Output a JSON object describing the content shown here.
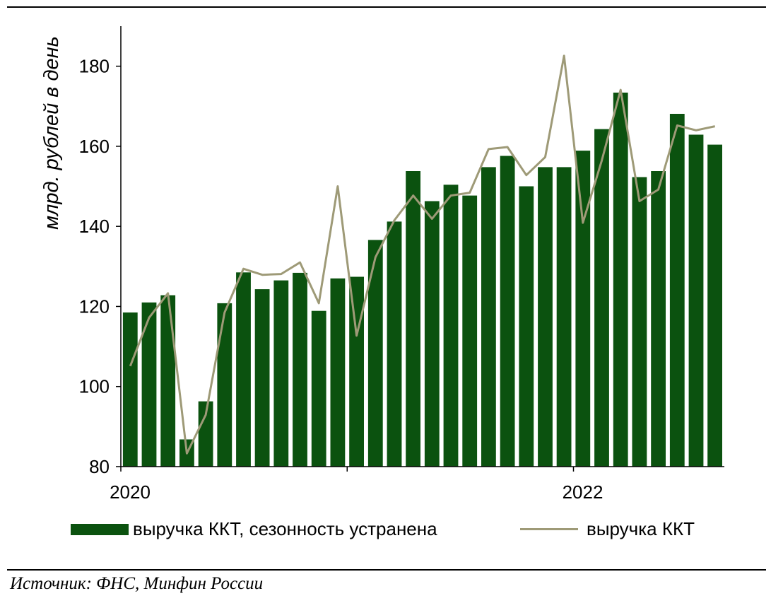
{
  "chart_data": {
    "type": "bar",
    "title": "",
    "ylabel": "млрд. рублей в день",
    "xlabel": "",
    "ylim": [
      80,
      190
    ],
    "yticks": [
      80,
      100,
      120,
      140,
      160,
      180
    ],
    "x_tick_labels": [
      {
        "index": 0,
        "label": "2020"
      },
      {
        "index": 24,
        "label": "2022"
      }
    ],
    "categories": [
      "2020-01",
      "2020-02",
      "2020-03",
      "2020-04",
      "2020-05",
      "2020-06",
      "2020-07",
      "2020-08",
      "2020-09",
      "2020-10",
      "2020-11",
      "2020-12",
      "2021-01",
      "2021-02",
      "2021-03",
      "2021-04",
      "2021-05",
      "2021-06",
      "2021-07",
      "2021-08",
      "2021-09",
      "2021-10",
      "2021-11",
      "2021-12",
      "2022-01",
      "2022-02",
      "2022-03",
      "2022-04",
      "2022-05",
      "2022-06",
      "2022-07",
      "2022-08"
    ],
    "series": [
      {
        "name": "выручка ККТ, сезонность устранена",
        "kind": "bar",
        "color": "#0b520f",
        "values": [
          118.5,
          121,
          122.8,
          86.8,
          96.3,
          120.8,
          128.5,
          124.3,
          126.5,
          128.4,
          118.9,
          127,
          127.4,
          136.6,
          141.2,
          153.8,
          146.3,
          150.4,
          147.7,
          154.8,
          157.6,
          150,
          154.8,
          154.8,
          158.9,
          164.3,
          173.4,
          152.3,
          153.8,
          168.1,
          162.9,
          160.4
        ]
      },
      {
        "name": "выручка ККТ",
        "kind": "line",
        "color": "#9e9a77",
        "values": [
          105.1,
          117.2,
          123.3,
          83.3,
          92.9,
          118.5,
          129.4,
          127.9,
          128.1,
          131,
          120.8,
          150,
          112.7,
          132.3,
          141.5,
          147.7,
          141.9,
          147.7,
          148.4,
          159.3,
          159.8,
          152.8,
          157.3,
          182.6,
          140.9,
          156.4,
          174.1,
          146.3,
          149.2,
          165.2,
          164,
          165
        ]
      }
    ],
    "legend_position": "bottom",
    "grid": false
  },
  "legend": {
    "bar_label": "выручка ККТ, сезонность устранена",
    "line_label": "выручка ККТ"
  },
  "source": "Источник: ФНС, Минфин России"
}
